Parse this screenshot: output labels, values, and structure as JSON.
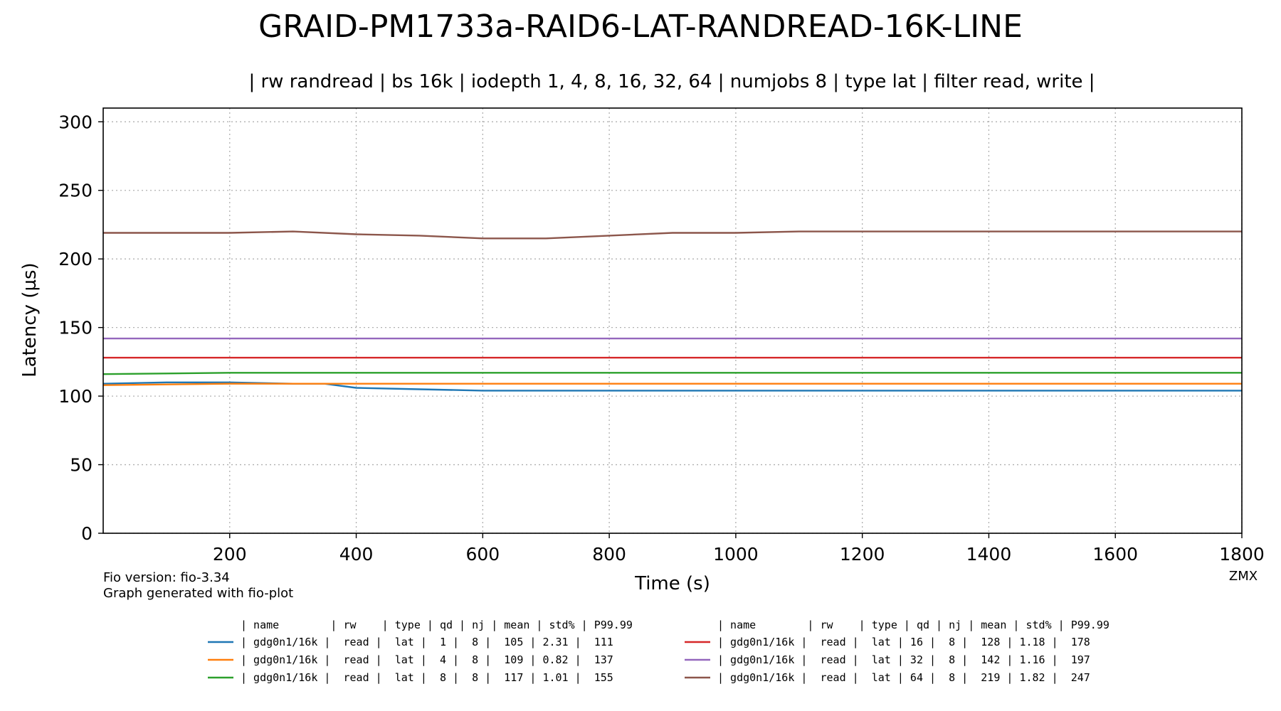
{
  "chart_data": {
    "type": "line",
    "title": "GRAID-PM1733a-RAID6-LAT-RANDREAD-16K-LINE",
    "subtitle": "| rw randread | bs 16k | iodepth 1, 4, 8, 16, 32, 64 | numjobs 8 | type lat | filter read, write |",
    "xlabel": "Time (s)",
    "ylabel": "Latency (µs)",
    "xlim": [
      0,
      1800
    ],
    "ylim": [
      0,
      310
    ],
    "xticks": [
      200,
      400,
      600,
      800,
      1000,
      1200,
      1400,
      1600,
      1800
    ],
    "xtick_labels": [
      "200",
      "400",
      "600",
      "800",
      "1000",
      "1200",
      "1400",
      "1600",
      "1800"
    ],
    "yticks": [
      0,
      50,
      100,
      150,
      200,
      250,
      300
    ],
    "ytick_labels": [
      "0",
      "50",
      "100",
      "150",
      "200",
      "250",
      "300"
    ],
    "grid": true,
    "footnote_left": [
      "Fio version: fio-3.34",
      "Graph generated with fio-plot"
    ],
    "footnote_right": "ZMX",
    "legend_header": "| name        | rw    | type | qd | nj | mean | std% | P99.99",
    "series": [
      {
        "legend": "| gdg0n1/16k |  read |  lat |  1 |  8 |  105 | 2.31 |  111",
        "color": "#1f77b4",
        "x": [
          0,
          100,
          200,
          300,
          350,
          400,
          500,
          600,
          700,
          800,
          900,
          1000,
          1100,
          1200,
          1300,
          1400,
          1500,
          1600,
          1700,
          1800
        ],
        "y": [
          109,
          110,
          110,
          109,
          109,
          106,
          105,
          104,
          104,
          104,
          104,
          104,
          104,
          104,
          104,
          104,
          104,
          104,
          104,
          104
        ]
      },
      {
        "legend": "| gdg0n1/16k |  read |  lat |  4 |  8 |  109 | 0.82 |  137",
        "color": "#ff7f0e",
        "x": [
          0,
          200,
          400,
          600,
          800,
          1000,
          1200,
          1400,
          1600,
          1800
        ],
        "y": [
          108,
          109,
          109,
          109,
          109,
          109,
          109,
          109,
          109,
          109
        ]
      },
      {
        "legend": "| gdg0n1/16k |  read |  lat |  8 |  8 |  117 | 1.01 |  155",
        "color": "#2ca02c",
        "x": [
          0,
          200,
          400,
          600,
          800,
          1000,
          1200,
          1400,
          1600,
          1800
        ],
        "y": [
          116,
          117,
          117,
          117,
          117,
          117,
          117,
          117,
          117,
          117
        ]
      },
      {
        "legend": "| gdg0n1/16k |  read |  lat | 16 |  8 |  128 | 1.18 |  178",
        "color": "#d62728",
        "x": [
          0,
          200,
          400,
          600,
          800,
          1000,
          1200,
          1400,
          1600,
          1800
        ],
        "y": [
          128,
          128,
          128,
          128,
          128,
          128,
          128,
          128,
          128,
          128
        ]
      },
      {
        "legend": "| gdg0n1/16k |  read |  lat | 32 |  8 |  142 | 1.16 |  197",
        "color": "#9467bd",
        "x": [
          0,
          200,
          400,
          600,
          800,
          1000,
          1200,
          1400,
          1600,
          1800
        ],
        "y": [
          142,
          142,
          142,
          142,
          142,
          142,
          142,
          142,
          142,
          142
        ]
      },
      {
        "legend": "| gdg0n1/16k |  read |  lat | 64 |  8 |  219 | 1.82 |  247",
        "color": "#8c564b",
        "x": [
          0,
          100,
          200,
          300,
          400,
          500,
          600,
          700,
          800,
          900,
          1000,
          1100,
          1200,
          1300,
          1400,
          1500,
          1600,
          1700,
          1800
        ],
        "y": [
          219,
          219,
          219,
          220,
          218,
          217,
          215,
          215,
          217,
          219,
          219,
          220,
          220,
          220,
          220,
          220,
          220,
          220,
          220
        ]
      }
    ]
  }
}
